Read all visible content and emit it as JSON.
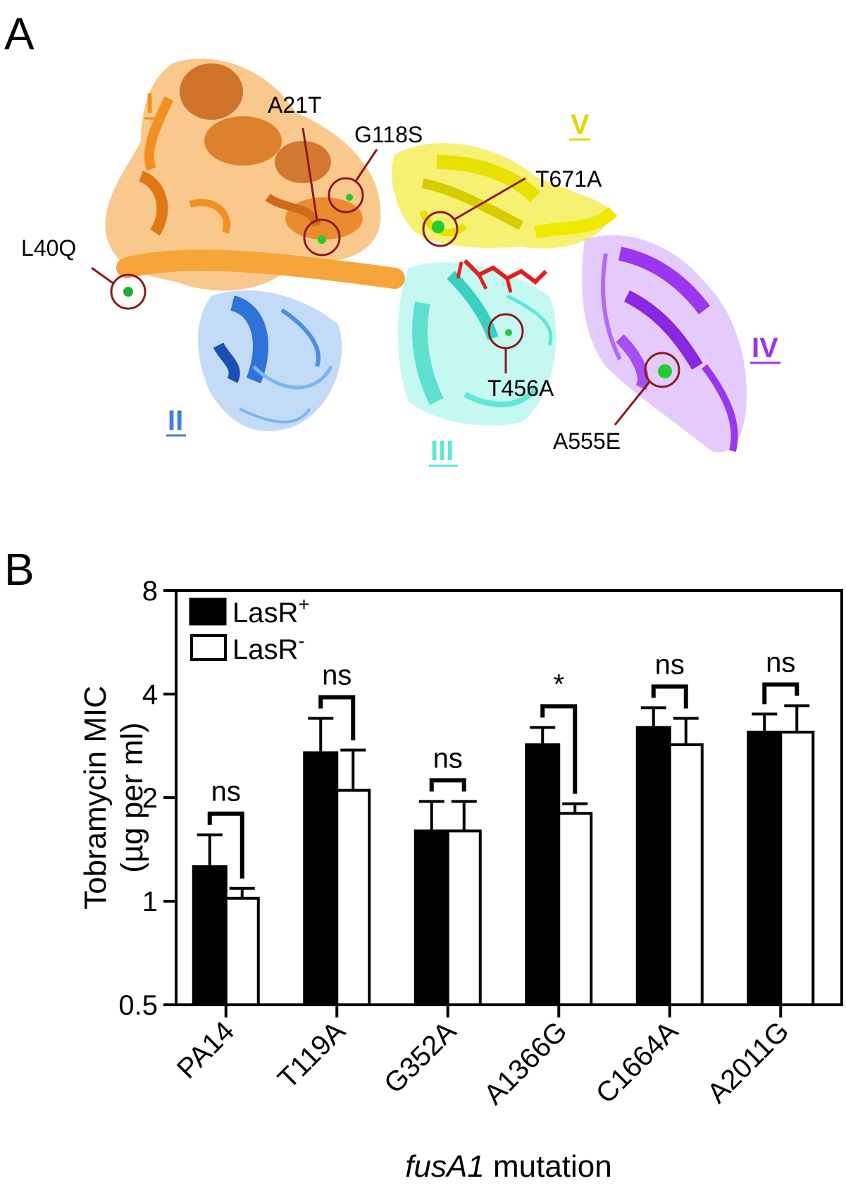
{
  "panel_a": {
    "label": "A",
    "domains": [
      {
        "id": "I",
        "text": "I",
        "color": "#f0901e"
      },
      {
        "id": "II",
        "text": "II",
        "color": "#3f7fe0"
      },
      {
        "id": "III",
        "text": "III",
        "color": "#5fe8d6"
      },
      {
        "id": "IV",
        "text": "IV",
        "color": "#9a36ee"
      },
      {
        "id": "V",
        "text": "V",
        "color": "#e5d800"
      }
    ],
    "mutations": [
      "A21T",
      "G118S",
      "L40Q",
      "T671A",
      "T456A",
      "A555E"
    ],
    "colors": {
      "marker_circle": "#8b1a1a",
      "mutation_site": "#22cc33",
      "ligand": "#e02020"
    }
  },
  "panel_b": {
    "label": "B",
    "chart_data": {
      "type": "bar",
      "ylabel_line1": "Tobramycin MIC",
      "ylabel_line2": "(µg per ml)",
      "xlabel_italic": "fusA1",
      "xlabel_rest": " mutation",
      "yscale": "log2",
      "ylim": [
        0.5,
        8
      ],
      "yticks": [
        "0.5",
        "1",
        "2",
        "4",
        "8"
      ],
      "categories": [
        "PA14",
        "T119A",
        "G352A",
        "A1366G",
        "C1664A",
        "A2011G"
      ],
      "series": [
        {
          "name": "LasR",
          "sup": "+",
          "fill": "#000000",
          "values": [
            1.26,
            2.7,
            1.6,
            2.85,
            3.2,
            3.1
          ],
          "errors": [
            0.3,
            0.7,
            0.35,
            0.35,
            0.45,
            0.4
          ]
        },
        {
          "name": "LasR",
          "sup": "-",
          "fill": "#ffffff",
          "values": [
            1.02,
            2.1,
            1.6,
            1.8,
            2.85,
            3.1
          ],
          "errors": [
            0.07,
            0.65,
            0.35,
            0.12,
            0.55,
            0.6
          ]
        }
      ],
      "significance": [
        "ns",
        "ns",
        "ns",
        "*",
        "ns",
        "ns"
      ],
      "legend_position": "top-left",
      "grid": false
    }
  }
}
